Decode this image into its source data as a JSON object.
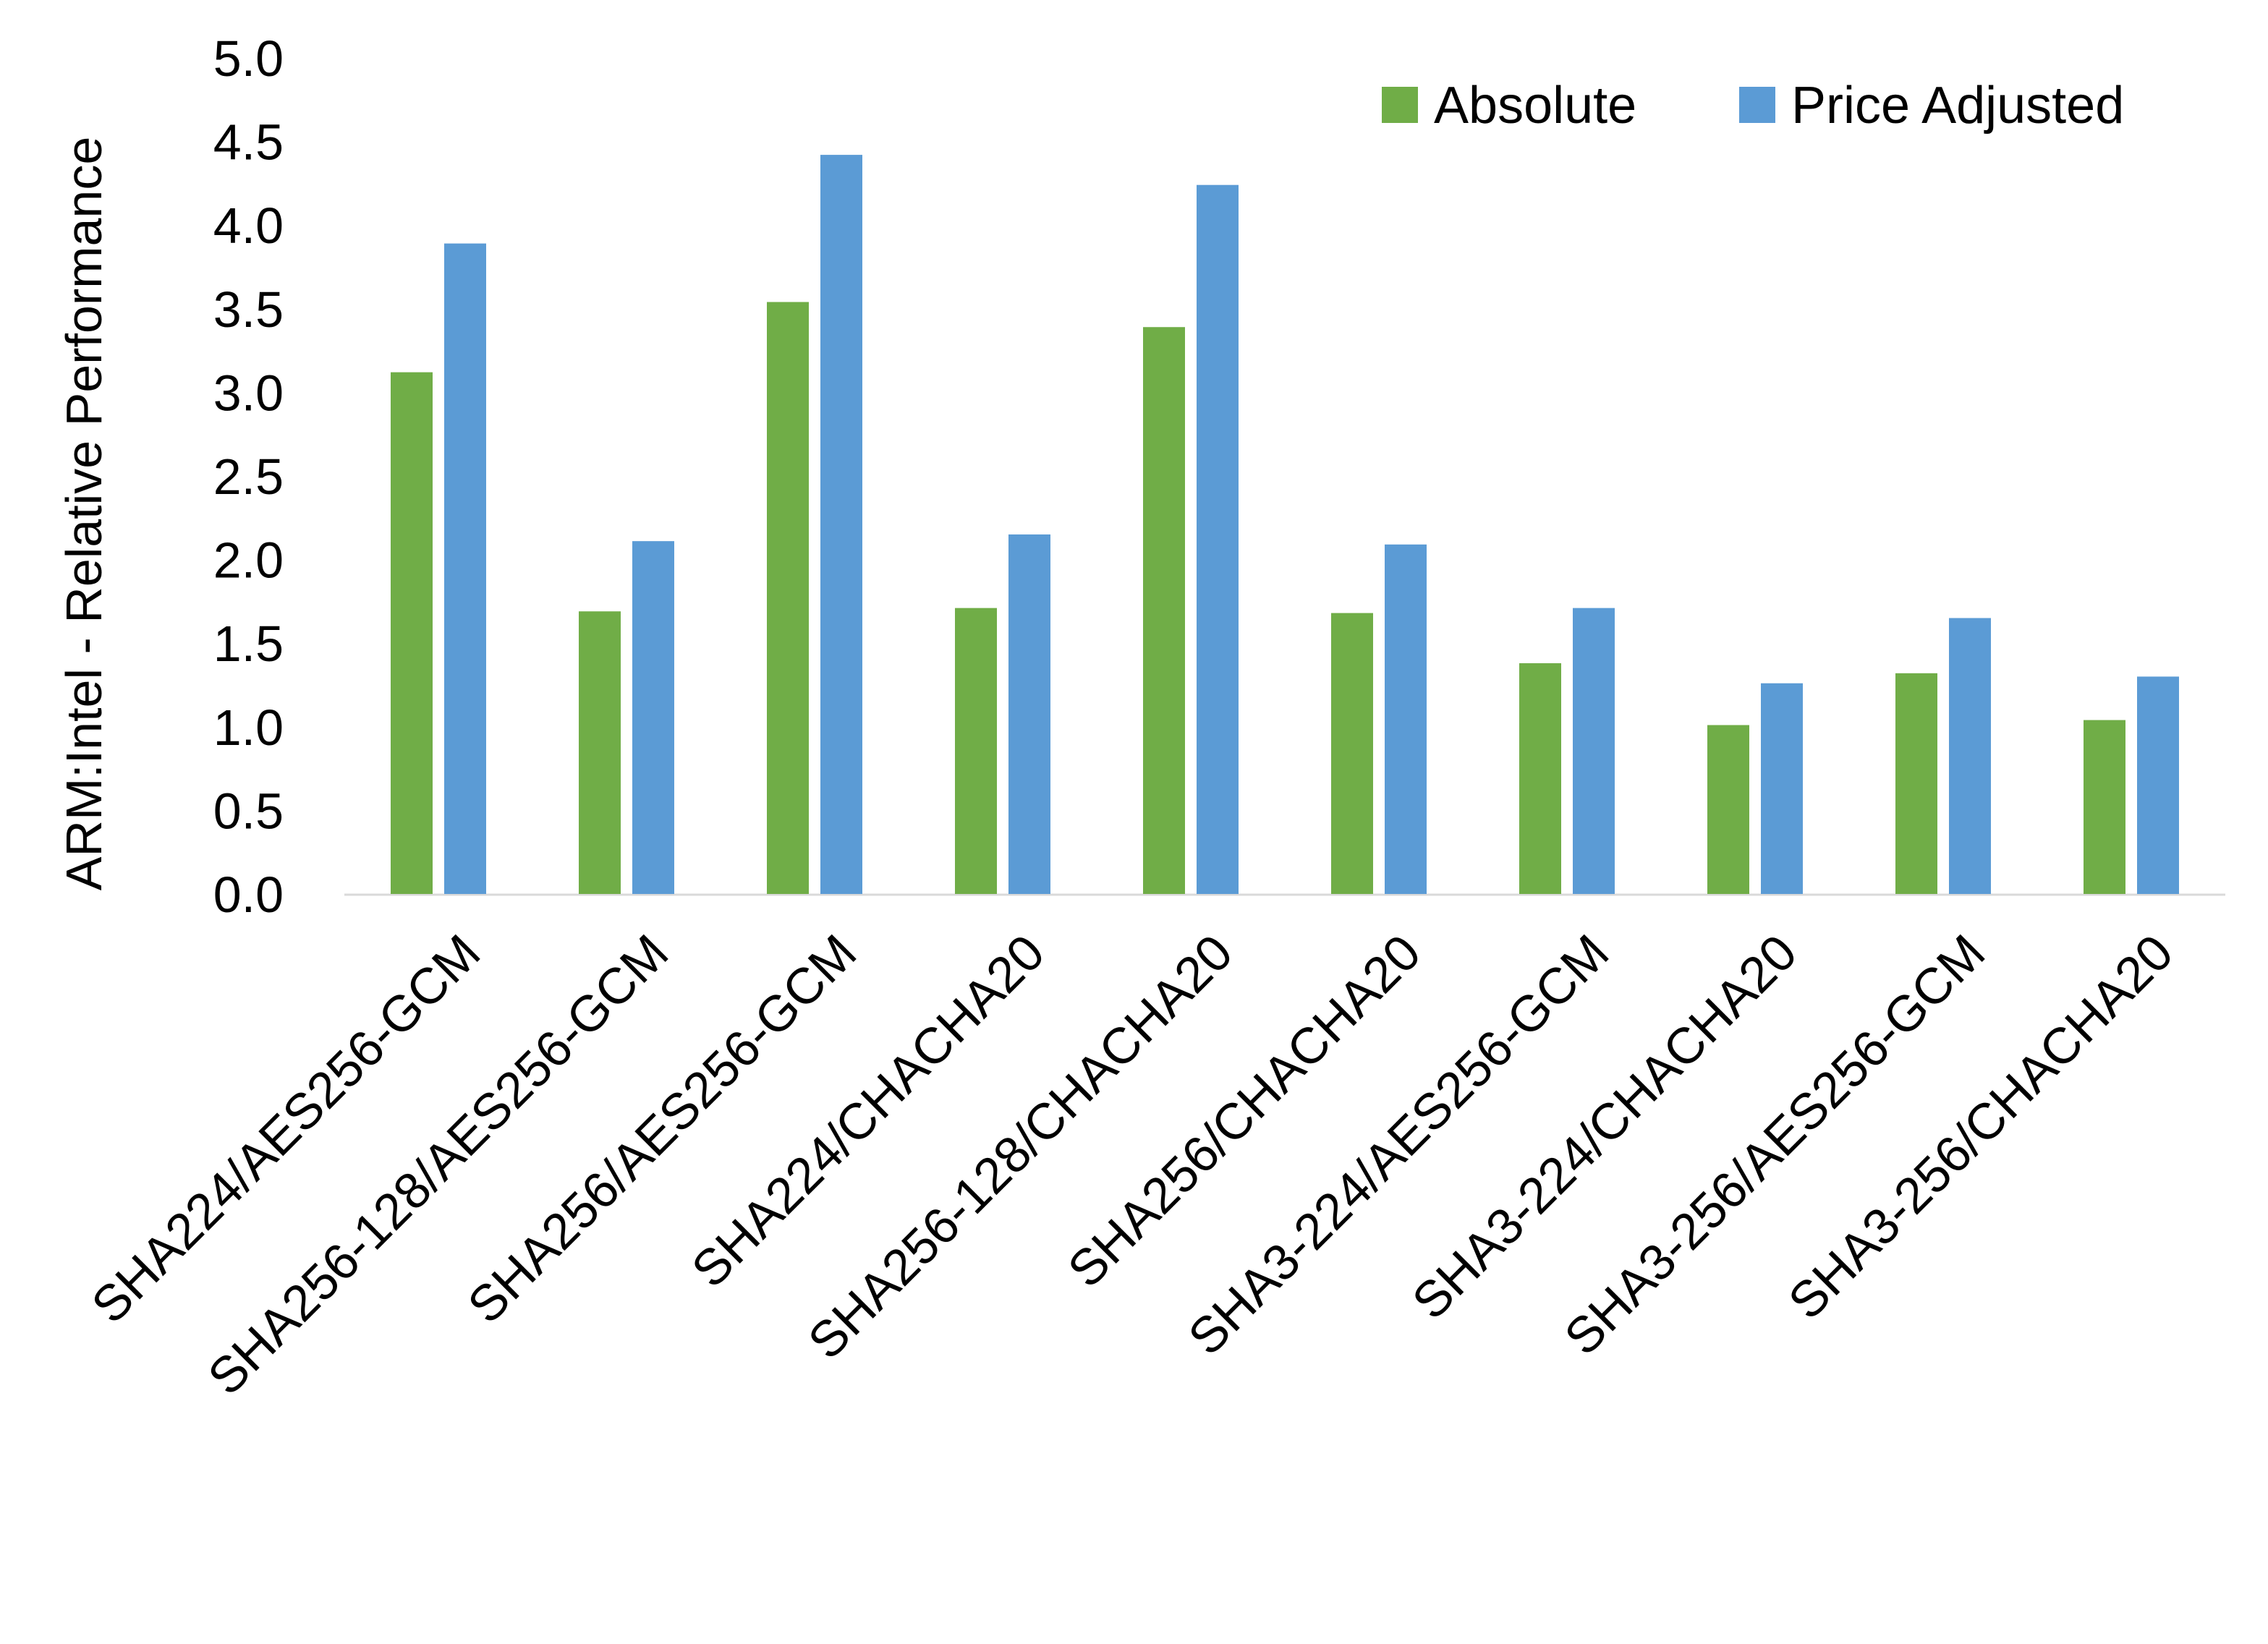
{
  "chart_data": {
    "type": "bar",
    "title": "",
    "xlabel": "",
    "ylabel": "ARM:Intel - Relative Performance",
    "ylim": [
      0,
      5.0
    ],
    "yticks": [
      "0.0",
      "0.5",
      "1.0",
      "1.5",
      "2.0",
      "2.5",
      "3.0",
      "3.5",
      "4.0",
      "4.5",
      "5.0"
    ],
    "grid": false,
    "legend_position": "top-right",
    "categories": [
      "SHA224/AES256-GCM",
      "SHA256-128/AES256-GCM",
      "SHA256/AES256-GCM",
      "SHA224/CHACHA20",
      "SHA256-128/CHACHA20",
      "SHA256/CHACHA20",
      "SHA3-224/AES256-GCM",
      "SHA3-224/CHACHA20",
      "SHA3-256/AES256-GCM",
      "SHA3-256/CHACHA20"
    ],
    "series": [
      {
        "name": "Absolute",
        "color": "#70AD47",
        "values": [
          3.12,
          1.69,
          3.54,
          1.71,
          3.39,
          1.68,
          1.38,
          1.01,
          1.32,
          1.04
        ]
      },
      {
        "name": "Price Adjusted",
        "color": "#5B9BD5",
        "values": [
          3.89,
          2.11,
          4.42,
          2.15,
          4.24,
          2.09,
          1.71,
          1.26,
          1.65,
          1.3
        ]
      }
    ]
  }
}
